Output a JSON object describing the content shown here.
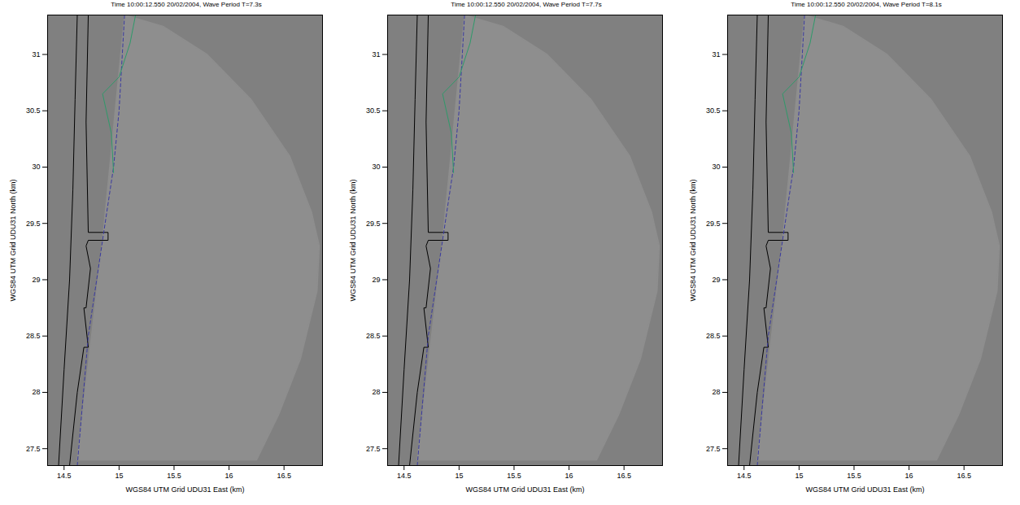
{
  "chart_data": [
    {
      "type": "map",
      "title": "Time 10:00:12.550   20/02/2004, Wave Period T=7.3s",
      "xlabel": "WGS84 UTM Grid UDU31 East (km)",
      "ylabel": "WGS84 UTM Grid UDU31 North (km)",
      "xlim": [
        14.35,
        16.85
      ],
      "ylim": [
        27.35,
        31.35
      ],
      "xticks": [
        14.5,
        15,
        15.5,
        16,
        16.5
      ],
      "yticks": [
        27.5,
        28,
        28.5,
        29,
        29.5,
        30,
        30.5,
        31
      ],
      "grid": false,
      "color": "#808080",
      "series": [
        {
          "type": "area",
          "color": "#8e8e8e",
          "x": [
            15.05,
            15.4,
            15.8,
            16.2,
            16.55,
            16.75,
            16.82,
            16.8,
            16.65,
            16.45,
            16.25,
            14.62,
            14.85,
            15.05
          ],
          "y": [
            31.35,
            31.25,
            31.0,
            30.6,
            30.1,
            29.6,
            29.3,
            28.9,
            28.3,
            27.8,
            27.4,
            27.4,
            29.35,
            31.35
          ]
        },
        {
          "type": "line",
          "color": "#000000",
          "line_style": "solid",
          "x": [
            14.45,
            14.5,
            14.55,
            14.58,
            14.6,
            14.62
          ],
          "y": [
            27.35,
            28.2,
            29.0,
            29.8,
            30.6,
            31.35
          ]
        },
        {
          "type": "line",
          "color": "#000000",
          "line_style": "solid",
          "x": [
            14.55,
            14.62,
            14.68,
            14.72,
            14.68,
            14.7,
            14.74,
            14.7,
            14.72,
            14.9,
            14.9,
            14.72,
            14.7,
            14.72
          ],
          "y": [
            27.35,
            28.0,
            28.4,
            28.4,
            28.75,
            28.75,
            29.1,
            29.3,
            29.35,
            29.35,
            29.42,
            29.42,
            30.4,
            31.35
          ]
        },
        {
          "type": "line",
          "color": "#3a3aa0",
          "line_style": "dashed",
          "x": [
            14.62,
            14.72,
            14.85,
            14.95,
            15.0,
            15.05
          ],
          "y": [
            27.35,
            28.5,
            29.35,
            30.0,
            30.5,
            31.35
          ]
        },
        {
          "type": "line",
          "color": "#2e9a6a",
          "line_style": "solid",
          "x": [
            14.95,
            14.93,
            14.85,
            15.0,
            15.1,
            15.15
          ],
          "y": [
            29.95,
            30.3,
            30.65,
            30.8,
            31.1,
            31.35
          ]
        }
      ]
    },
    {
      "type": "map",
      "title": "Time 10:00:12.550   20/02/2004, Wave Period T=7.7s",
      "xlabel": "WGS84 UTM Grid UDU31 East (km)",
      "ylabel": "WGS84 UTM Grid UDU31 North (km)",
      "xlim": [
        14.35,
        16.85
      ],
      "ylim": [
        27.35,
        31.35
      ],
      "xticks": [
        14.5,
        15,
        15.5,
        16,
        16.5
      ],
      "yticks": [
        27.5,
        28,
        28.5,
        29,
        29.5,
        30,
        30.5,
        31
      ],
      "grid": false,
      "color": "#808080",
      "series": [
        {
          "type": "area",
          "color": "#8e8e8e",
          "x": [
            15.05,
            15.4,
            15.8,
            16.2,
            16.55,
            16.75,
            16.82,
            16.8,
            16.65,
            16.45,
            16.25,
            14.62,
            14.85,
            15.05
          ],
          "y": [
            31.35,
            31.25,
            31.0,
            30.6,
            30.1,
            29.6,
            29.3,
            28.9,
            28.3,
            27.8,
            27.4,
            27.4,
            29.35,
            31.35
          ]
        },
        {
          "type": "line",
          "color": "#000000",
          "line_style": "solid",
          "x": [
            14.45,
            14.5,
            14.55,
            14.58,
            14.6,
            14.62
          ],
          "y": [
            27.35,
            28.2,
            29.0,
            29.8,
            30.6,
            31.35
          ]
        },
        {
          "type": "line",
          "color": "#000000",
          "line_style": "solid",
          "x": [
            14.55,
            14.62,
            14.68,
            14.72,
            14.68,
            14.7,
            14.74,
            14.7,
            14.72,
            14.9,
            14.9,
            14.72,
            14.7,
            14.72
          ],
          "y": [
            27.35,
            28.0,
            28.4,
            28.4,
            28.75,
            28.75,
            29.1,
            29.3,
            29.35,
            29.35,
            29.42,
            29.42,
            30.4,
            31.35
          ]
        },
        {
          "type": "line",
          "color": "#3a3aa0",
          "line_style": "dashed",
          "x": [
            14.62,
            14.72,
            14.85,
            14.95,
            15.0,
            15.05
          ],
          "y": [
            27.35,
            28.5,
            29.35,
            30.0,
            30.5,
            31.35
          ]
        },
        {
          "type": "line",
          "color": "#2e9a6a",
          "line_style": "solid",
          "x": [
            14.95,
            14.93,
            14.85,
            15.0,
            15.1,
            15.15
          ],
          "y": [
            29.95,
            30.3,
            30.65,
            30.8,
            31.1,
            31.35
          ]
        }
      ]
    },
    {
      "type": "map",
      "title": "Time 10:00:12.550   20/02/2004, Wave Period T=8.1s",
      "xlabel": "WGS84 UTM Grid UDU31 East (km)",
      "ylabel": "WGS84 UTM Grid UDU31 North (km)",
      "xlim": [
        14.35,
        16.85
      ],
      "ylim": [
        27.35,
        31.35
      ],
      "xticks": [
        14.5,
        15,
        15.5,
        16,
        16.5
      ],
      "yticks": [
        27.5,
        28,
        28.5,
        29,
        29.5,
        30,
        30.5,
        31
      ],
      "grid": false,
      "color": "#808080",
      "series": [
        {
          "type": "area",
          "color": "#8e8e8e",
          "x": [
            15.05,
            15.4,
            15.8,
            16.2,
            16.55,
            16.75,
            16.82,
            16.8,
            16.65,
            16.45,
            16.25,
            14.62,
            14.85,
            15.05
          ],
          "y": [
            31.35,
            31.25,
            31.0,
            30.6,
            30.1,
            29.6,
            29.3,
            28.9,
            28.3,
            27.8,
            27.4,
            27.4,
            29.35,
            31.35
          ]
        },
        {
          "type": "line",
          "color": "#000000",
          "line_style": "solid",
          "x": [
            14.45,
            14.5,
            14.55,
            14.58,
            14.6,
            14.62
          ],
          "y": [
            27.35,
            28.2,
            29.0,
            29.8,
            30.6,
            31.35
          ]
        },
        {
          "type": "line",
          "color": "#000000",
          "line_style": "solid",
          "x": [
            14.55,
            14.62,
            14.68,
            14.72,
            14.68,
            14.7,
            14.74,
            14.7,
            14.72,
            14.9,
            14.9,
            14.72,
            14.7,
            14.72
          ],
          "y": [
            27.35,
            28.0,
            28.4,
            28.4,
            28.75,
            28.75,
            29.1,
            29.3,
            29.35,
            29.35,
            29.42,
            29.42,
            30.4,
            31.35
          ]
        },
        {
          "type": "line",
          "color": "#3a3aa0",
          "line_style": "dashed",
          "x": [
            14.62,
            14.72,
            14.85,
            14.95,
            15.0,
            15.05
          ],
          "y": [
            27.35,
            28.5,
            29.35,
            30.0,
            30.5,
            31.35
          ]
        },
        {
          "type": "line",
          "color": "#2e9a6a",
          "line_style": "solid",
          "x": [
            14.95,
            14.93,
            14.85,
            15.0,
            15.1,
            15.15
          ],
          "y": [
            29.95,
            30.3,
            30.65,
            30.8,
            31.1,
            31.35
          ]
        }
      ]
    }
  ]
}
